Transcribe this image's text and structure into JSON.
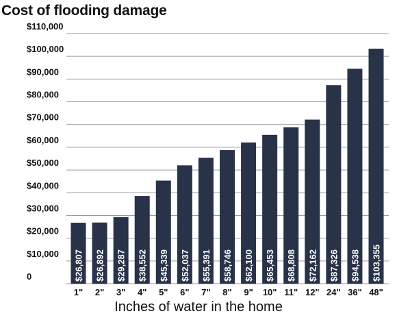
{
  "chart_data": {
    "type": "bar",
    "title": "Cost of flooding damage",
    "xlabel": "Inches of water in the home",
    "ylabel": "",
    "categories": [
      "1\"",
      "2\"",
      "3\"",
      "4\"",
      "5\"",
      "6\"",
      "7\"",
      "8\"",
      "9\"",
      "10\"",
      "11\"",
      "12\"",
      "24\"",
      "36\"",
      "48\""
    ],
    "values": [
      26807,
      26892,
      29287,
      38552,
      45339,
      52037,
      55391,
      58746,
      62100,
      65453,
      68808,
      72162,
      87326,
      94538,
      103355
    ],
    "data_labels": [
      "$26,807",
      "$26,892",
      "$29,287",
      "$38,552",
      "$45,339",
      "$52,037",
      "$55,391",
      "$58,746",
      "$62,100",
      "$65,453",
      "$68,808",
      "$72,162",
      "$87,326",
      "$94,538",
      "$103,355"
    ],
    "ylim": [
      0,
      110000
    ],
    "yticks": [
      0,
      10000,
      20000,
      30000,
      40000,
      50000,
      60000,
      70000,
      80000,
      90000,
      100000,
      110000
    ],
    "ytick_labels": [
      "0",
      "$10,000",
      "$20,000",
      "$30,000",
      "$40,000",
      "$50,000",
      "$60,000",
      "$70,000",
      "$80,000",
      "$90,000",
      "$100,000",
      "$110,000"
    ],
    "grid": true,
    "bar_color": "#283248",
    "grid_color": "#9a9a9a",
    "label_color": "#ffffff"
  }
}
